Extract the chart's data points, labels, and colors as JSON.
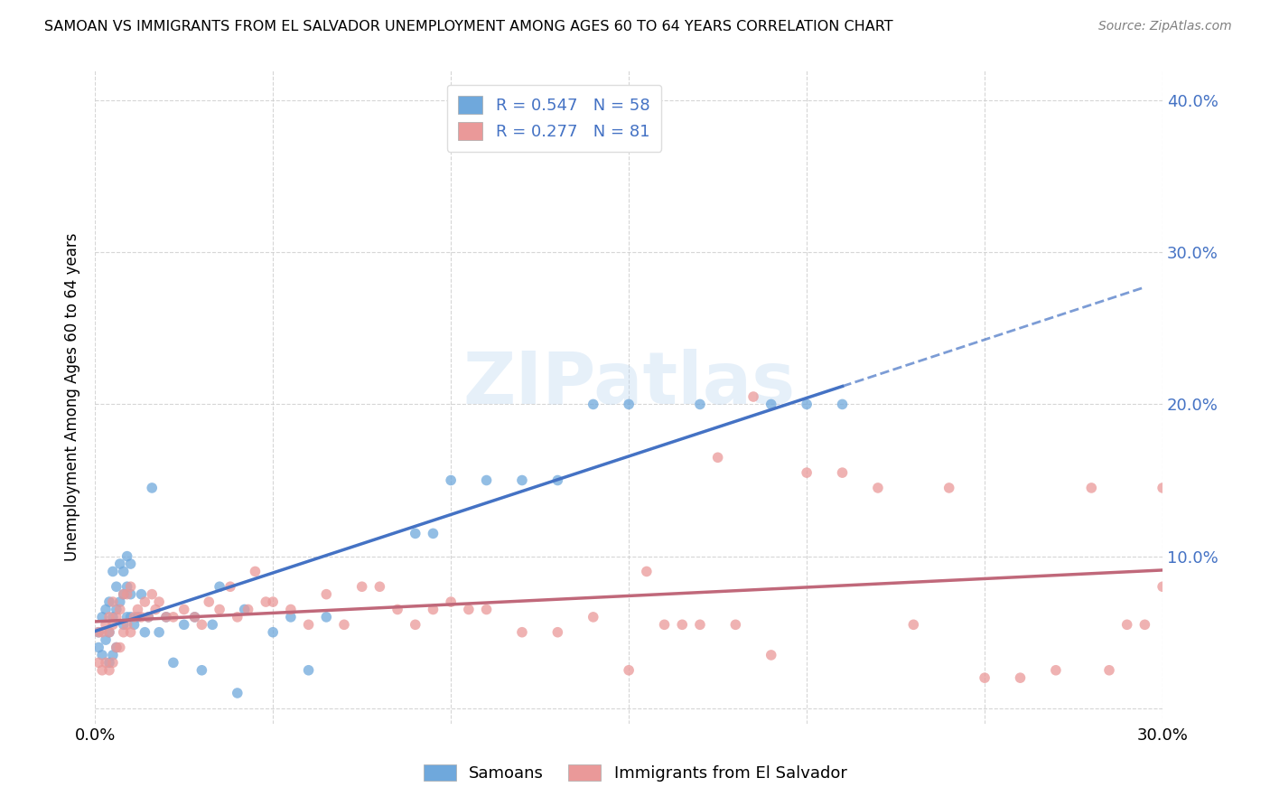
{
  "title": "SAMOAN VS IMMIGRANTS FROM EL SALVADOR UNEMPLOYMENT AMONG AGES 60 TO 64 YEARS CORRELATION CHART",
  "source": "Source: ZipAtlas.com",
  "ylabel": "Unemployment Among Ages 60 to 64 years",
  "xlim": [
    0.0,
    0.3
  ],
  "ylim": [
    -0.01,
    0.42
  ],
  "yticks": [
    0.0,
    0.1,
    0.2,
    0.3,
    0.4
  ],
  "ytick_labels": [
    "",
    "10.0%",
    "20.0%",
    "30.0%",
    "40.0%"
  ],
  "xticks": [
    0.0,
    0.05,
    0.1,
    0.15,
    0.2,
    0.25,
    0.3
  ],
  "xtick_labels": [
    "0.0%",
    "",
    "",
    "",
    "",
    "",
    "30.0%"
  ],
  "blue_R": 0.547,
  "blue_N": 58,
  "pink_R": 0.277,
  "pink_N": 81,
  "blue_color": "#6fa8dc",
  "pink_color": "#ea9999",
  "trendline_blue": "#4472c4",
  "trendline_pink": "#c0687a",
  "background_color": "#ffffff",
  "watermark": "ZIPatlas",
  "legend_labels": [
    "Samoans",
    "Immigrants from El Salvador"
  ],
  "blue_x": [
    0.001,
    0.001,
    0.002,
    0.002,
    0.003,
    0.003,
    0.004,
    0.004,
    0.004,
    0.005,
    0.005,
    0.005,
    0.006,
    0.006,
    0.006,
    0.007,
    0.007,
    0.008,
    0.008,
    0.008,
    0.009,
    0.009,
    0.009,
    0.01,
    0.01,
    0.01,
    0.011,
    0.012,
    0.013,
    0.014,
    0.015,
    0.016,
    0.018,
    0.02,
    0.022,
    0.025,
    0.028,
    0.03,
    0.033,
    0.035,
    0.04,
    0.042,
    0.05,
    0.055,
    0.06,
    0.065,
    0.09,
    0.095,
    0.1,
    0.11,
    0.12,
    0.13,
    0.14,
    0.15,
    0.17,
    0.19,
    0.2,
    0.21
  ],
  "blue_y": [
    0.04,
    0.05,
    0.035,
    0.06,
    0.045,
    0.065,
    0.03,
    0.05,
    0.07,
    0.035,
    0.06,
    0.09,
    0.04,
    0.065,
    0.08,
    0.07,
    0.095,
    0.055,
    0.075,
    0.09,
    0.06,
    0.08,
    0.1,
    0.06,
    0.075,
    0.095,
    0.055,
    0.06,
    0.075,
    0.05,
    0.06,
    0.145,
    0.05,
    0.06,
    0.03,
    0.055,
    0.06,
    0.025,
    0.055,
    0.08,
    0.01,
    0.065,
    0.05,
    0.06,
    0.025,
    0.06,
    0.115,
    0.115,
    0.15,
    0.15,
    0.15,
    0.15,
    0.2,
    0.2,
    0.2,
    0.2,
    0.2,
    0.2
  ],
  "pink_x": [
    0.001,
    0.001,
    0.002,
    0.002,
    0.003,
    0.003,
    0.004,
    0.004,
    0.004,
    0.005,
    0.005,
    0.005,
    0.006,
    0.006,
    0.007,
    0.007,
    0.008,
    0.008,
    0.009,
    0.009,
    0.01,
    0.01,
    0.011,
    0.012,
    0.013,
    0.014,
    0.015,
    0.016,
    0.017,
    0.018,
    0.02,
    0.022,
    0.025,
    0.028,
    0.03,
    0.032,
    0.035,
    0.038,
    0.04,
    0.043,
    0.045,
    0.048,
    0.05,
    0.055,
    0.06,
    0.065,
    0.07,
    0.075,
    0.08,
    0.085,
    0.09,
    0.095,
    0.1,
    0.105,
    0.11,
    0.12,
    0.13,
    0.14,
    0.15,
    0.155,
    0.16,
    0.165,
    0.17,
    0.175,
    0.18,
    0.185,
    0.19,
    0.2,
    0.21,
    0.22,
    0.23,
    0.24,
    0.25,
    0.26,
    0.27,
    0.28,
    0.285,
    0.29,
    0.295,
    0.3,
    0.3
  ],
  "pink_y": [
    0.03,
    0.05,
    0.025,
    0.05,
    0.03,
    0.055,
    0.025,
    0.05,
    0.06,
    0.03,
    0.055,
    0.07,
    0.04,
    0.06,
    0.04,
    0.065,
    0.05,
    0.075,
    0.055,
    0.075,
    0.05,
    0.08,
    0.06,
    0.065,
    0.06,
    0.07,
    0.06,
    0.075,
    0.065,
    0.07,
    0.06,
    0.06,
    0.065,
    0.06,
    0.055,
    0.07,
    0.065,
    0.08,
    0.06,
    0.065,
    0.09,
    0.07,
    0.07,
    0.065,
    0.055,
    0.075,
    0.055,
    0.08,
    0.08,
    0.065,
    0.055,
    0.065,
    0.07,
    0.065,
    0.065,
    0.05,
    0.05,
    0.06,
    0.025,
    0.09,
    0.055,
    0.055,
    0.055,
    0.165,
    0.055,
    0.205,
    0.035,
    0.155,
    0.155,
    0.145,
    0.055,
    0.145,
    0.02,
    0.02,
    0.025,
    0.145,
    0.025,
    0.055,
    0.055,
    0.08,
    0.145
  ]
}
